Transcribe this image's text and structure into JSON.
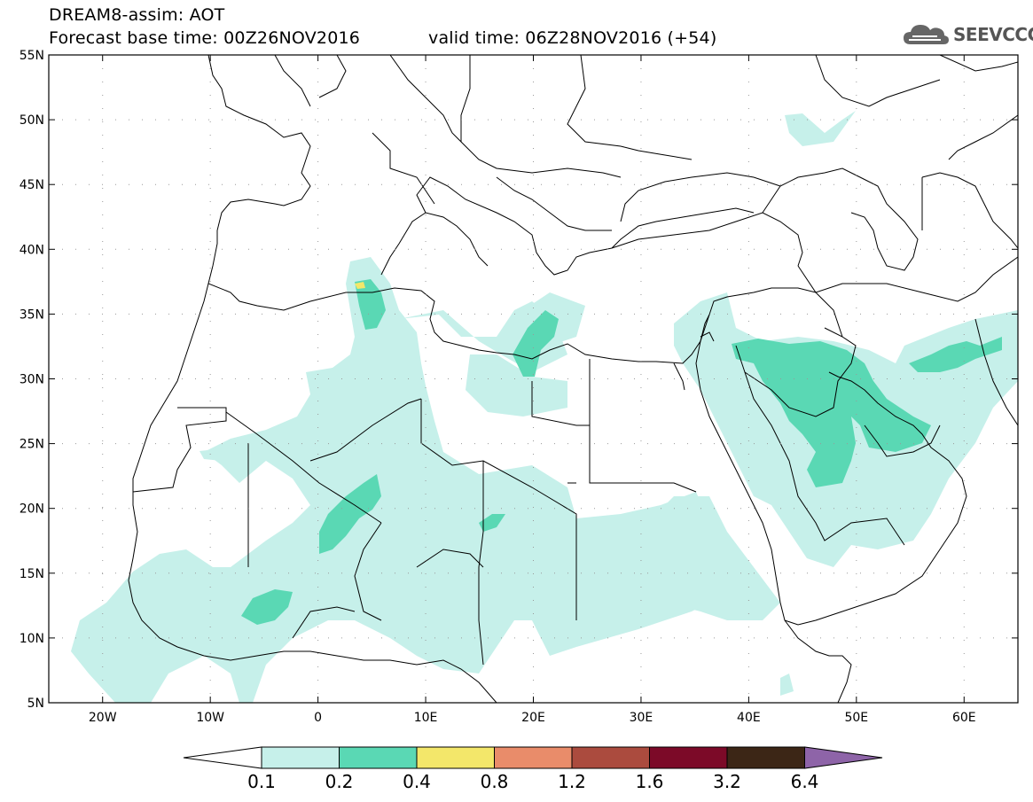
{
  "header": {
    "line1": "DREAM8-assim: AOT",
    "line2_left": "Forecast base time: 00Z26NOV2016",
    "line2_right": "valid time: 06Z28NOV2016 (+54)"
  },
  "logo": {
    "text": "SEEVCCC",
    "icon": "cloud-icon"
  },
  "map": {
    "lon_range": [
      -25,
      65
    ],
    "lat_range": [
      5,
      55
    ],
    "lat_ticks": [
      {
        "value": 55,
        "label": "55N"
      },
      {
        "value": 50,
        "label": "50N"
      },
      {
        "value": 45,
        "label": "45N"
      },
      {
        "value": 40,
        "label": "40N"
      },
      {
        "value": 35,
        "label": "35N"
      },
      {
        "value": 30,
        "label": "30N"
      },
      {
        "value": 25,
        "label": "25N"
      },
      {
        "value": 20,
        "label": "20N"
      },
      {
        "value": 15,
        "label": "15N"
      },
      {
        "value": 10,
        "label": "10N"
      },
      {
        "value": 5,
        "label": "5N"
      }
    ],
    "lon_ticks": [
      {
        "value": -20,
        "label": "20W"
      },
      {
        "value": -10,
        "label": "10W"
      },
      {
        "value": 0,
        "label": "0"
      },
      {
        "value": 10,
        "label": "10E"
      },
      {
        "value": 20,
        "label": "20E"
      },
      {
        "value": 30,
        "label": "30E"
      },
      {
        "value": 40,
        "label": "40E"
      },
      {
        "value": 50,
        "label": "50E"
      },
      {
        "value": 60,
        "label": "60E"
      }
    ]
  },
  "colorbar": {
    "colors": [
      "#ffffff",
      "#c6f0ea",
      "#5ad8b4",
      "#f3e76a",
      "#e98c6a",
      "#ab4b3e",
      "#7c0a28",
      "#3c2616",
      "#8e64a8"
    ],
    "labels": [
      "0.1",
      "0.2",
      "0.4",
      "0.8",
      "1.2",
      "1.6",
      "3.2",
      "6.4"
    ]
  },
  "colors": {
    "light": "#c6f0ea",
    "medium": "#5ad8b4",
    "yellow": "#f3e76a"
  }
}
